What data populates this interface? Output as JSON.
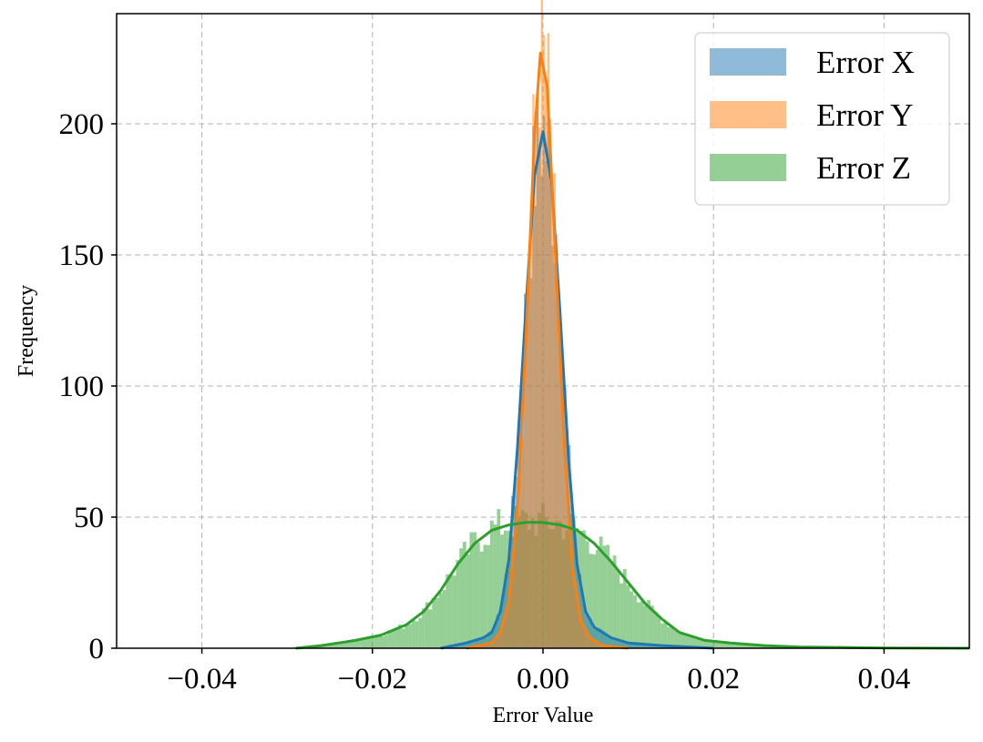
{
  "chart_data": {
    "type": "histogram",
    "xlabel": "Error Value",
    "ylabel": "Frequency",
    "xlim": [
      -0.05,
      0.05
    ],
    "ylim": [
      0,
      242
    ],
    "xticks": [
      -0.04,
      -0.02,
      0.0,
      0.02,
      0.04
    ],
    "xtick_labels": [
      "−0.04",
      "−0.02",
      "0.00",
      "0.02",
      "0.04"
    ],
    "yticks": [
      0,
      50,
      100,
      150,
      200
    ],
    "ytick_labels": [
      "0",
      "50",
      "100",
      "150",
      "200"
    ],
    "grid": true,
    "legend_position": "top-right",
    "series": [
      {
        "name": "Error X",
        "color": "#1f77b4",
        "bar_alpha": 0.5,
        "kde": {
          "x": [
            -0.012,
            -0.009,
            -0.007,
            -0.006,
            -0.005,
            -0.004,
            -0.003,
            -0.002,
            -0.001,
            0.0,
            0.001,
            0.002,
            0.003,
            0.004,
            0.005,
            0.006,
            0.008,
            0.01,
            0.014,
            0.02
          ],
          "y": [
            0,
            2,
            4,
            6,
            14,
            34,
            76,
            130,
            180,
            197,
            178,
            128,
            72,
            32,
            14,
            8,
            4,
            2,
            1,
            0
          ]
        }
      },
      {
        "name": "Error Y",
        "color": "#ff7f0e",
        "bar_alpha": 0.5,
        "kde": {
          "x": [
            -0.009,
            -0.006,
            -0.005,
            -0.004,
            -0.003,
            -0.002,
            -0.001,
            -0.0003,
            0.0005,
            0.0015,
            0.0025,
            0.0035,
            0.0045,
            0.0055,
            0.007,
            0.01
          ],
          "y": [
            0,
            2,
            6,
            18,
            52,
            118,
            195,
            227,
            214,
            148,
            78,
            30,
            10,
            4,
            1,
            0
          ]
        }
      },
      {
        "name": "Error Z",
        "color": "#2ca02c",
        "bar_alpha": 0.5,
        "kde": {
          "x": [
            -0.029,
            -0.026,
            -0.022,
            -0.019,
            -0.016,
            -0.014,
            -0.012,
            -0.01,
            -0.008,
            -0.006,
            -0.004,
            -0.002,
            -0.001,
            0.0,
            0.002,
            0.004,
            0.006,
            0.008,
            0.01,
            0.012,
            0.014,
            0.016,
            0.019,
            0.022,
            0.026,
            0.03,
            0.035,
            0.04,
            0.05
          ],
          "y": [
            0,
            1,
            3,
            5,
            9,
            14,
            22,
            32,
            40,
            45,
            47,
            48,
            48,
            48,
            47,
            45,
            40,
            33,
            25,
            17,
            11,
            6,
            3,
            2,
            1,
            0.5,
            0.3,
            0.1,
            0
          ]
        }
      }
    ]
  }
}
